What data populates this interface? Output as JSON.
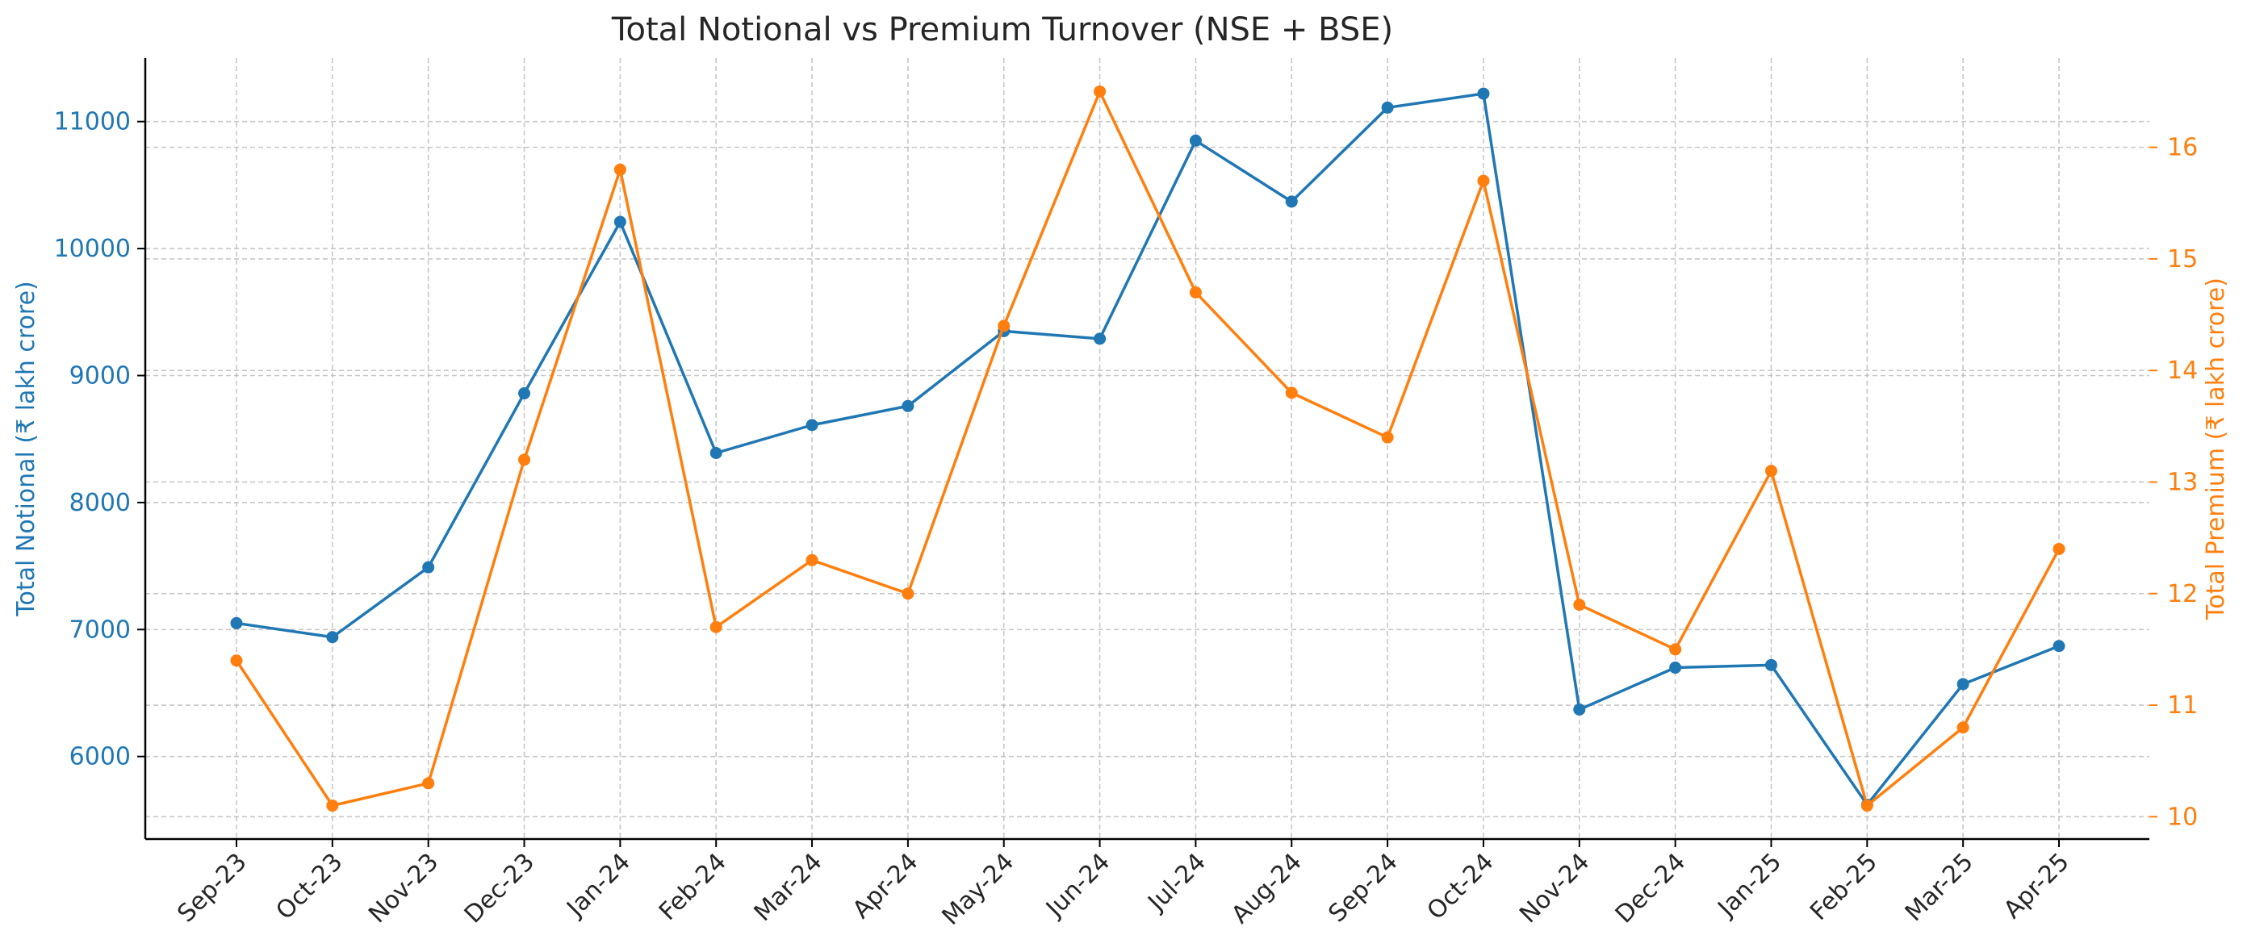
{
  "chart_data": {
    "type": "line",
    "title": "Total Notional vs Premium Turnover (NSE + BSE)",
    "categories": [
      "Sep-23",
      "Oct-23",
      "Nov-23",
      "Dec-23",
      "Jan-24",
      "Feb-24",
      "Mar-24",
      "Apr-24",
      "May-24",
      "Jun-24",
      "Jul-24",
      "Aug-24",
      "Sep-24",
      "Oct-24",
      "Nov-24",
      "Dec-24",
      "Jan-25",
      "Feb-25",
      "Mar-25",
      "Apr-25"
    ],
    "y_left": {
      "label": "Total Notional (₹ lakh crore)",
      "ylim": [
        5350,
        11500
      ],
      "ticks": [
        6000,
        7000,
        8000,
        9000,
        10000,
        11000
      ],
      "color": "#1f77b4"
    },
    "y_right": {
      "label": "Total Premium (₹ lakh crore)",
      "ylim": [
        9.8,
        16.8
      ],
      "ticks": [
        10,
        11,
        12,
        13,
        14,
        15,
        16
      ],
      "color": "#ff7f0e"
    },
    "series": [
      {
        "axis": "left",
        "color": "#1f77b4",
        "values": [
          7050,
          6940,
          7490,
          8860,
          10210,
          8390,
          8610,
          8760,
          9350,
          9290,
          10850,
          10370,
          11110,
          11220,
          6370,
          6700,
          6720,
          5620,
          6570,
          6870
        ]
      },
      {
        "axis": "right",
        "color": "#ff7f0e",
        "values": [
          11.4,
          10.1,
          10.3,
          13.2,
          15.8,
          11.7,
          12.3,
          12.0,
          14.4,
          16.5,
          14.7,
          13.8,
          13.4,
          15.7,
          11.9,
          11.5,
          13.1,
          10.1,
          10.8,
          12.4
        ]
      }
    ],
    "grid": true,
    "legend": "none"
  }
}
